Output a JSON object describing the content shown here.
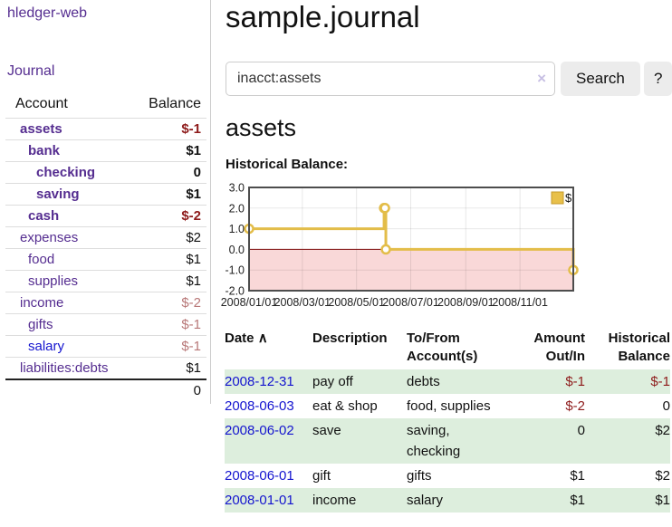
{
  "brand": {
    "label": "hledger-web"
  },
  "nav": {
    "journal": "Journal"
  },
  "sidebar": {
    "columns": {
      "account": "Account",
      "balance": "Balance"
    },
    "accounts": [
      {
        "name": "assets",
        "balance": "$-1",
        "level": 0,
        "in_current_account": true
      },
      {
        "name": "bank",
        "balance": "$1",
        "level": 1,
        "in_current_account": true
      },
      {
        "name": "checking",
        "balance": "0",
        "level": 2,
        "in_current_account": true
      },
      {
        "name": "saving",
        "balance": "$1",
        "level": 2,
        "in_current_account": true
      },
      {
        "name": "cash",
        "balance": "$-2",
        "level": 1,
        "in_current_account": true
      },
      {
        "name": "expenses",
        "balance": "$2",
        "level": 0
      },
      {
        "name": "food",
        "balance": "$1",
        "level": 1
      },
      {
        "name": "supplies",
        "balance": "$1",
        "level": 1
      },
      {
        "name": "income",
        "balance": "$-2",
        "level": 0
      },
      {
        "name": "gifts",
        "balance": "$-1",
        "level": 1
      },
      {
        "name": "salary",
        "balance": "$-1",
        "level": 1,
        "link_state": "unvisited"
      },
      {
        "name": "liabilities:debts",
        "balance": "$1",
        "level": 0
      }
    ],
    "total": "0"
  },
  "header": {
    "title": "sample.journal"
  },
  "search": {
    "value": "inacct:assets",
    "clear_icon": "×",
    "search_button": "Search",
    "help_button": "?"
  },
  "account_view": {
    "heading": "assets",
    "chart_title": "Historical Balance:"
  },
  "chart_data": {
    "type": "line",
    "title": "Historical Balance:",
    "legend": {
      "label": "$",
      "position": "top-right"
    },
    "x_ticks": [
      "2008/01/01",
      "2008/03/01",
      "2008/05/01",
      "2008/07/01",
      "2008/09/01",
      "2008/11/01"
    ],
    "y_ticks": [
      "3.0",
      "2.0",
      "1.0",
      "0.0",
      "-1.0",
      "-2.0"
    ],
    "xlim": [
      "2008/01/01",
      "2008/12/31"
    ],
    "ylim": [
      -2,
      3
    ],
    "grid": true,
    "step": true,
    "negative_region_shaded": true,
    "series": [
      {
        "name": "$",
        "points": [
          {
            "date": "2008/01/01",
            "value": 1
          },
          {
            "date": "2008/06/01",
            "value": 2
          },
          {
            "date": "2008/06/02",
            "value": 2
          },
          {
            "date": "2008/06/03",
            "value": 0
          },
          {
            "date": "2008/12/31",
            "value": -1
          }
        ]
      }
    ],
    "colors": {
      "line": "#e3bd49",
      "marker_fill": "#ffffff",
      "legend_fill": "#e8c04a",
      "legend_border": "#c49a2a",
      "negative_fill": "#f9d8d8",
      "zero_line": "#7c0b0b",
      "plot_border": "#4d4d4d"
    }
  },
  "register": {
    "columns": {
      "date": "Date",
      "description": "Description",
      "accounts": "To/From Account(s)",
      "amount": "Amount Out/In",
      "balance": "Historical Balance"
    },
    "sort": {
      "column": "date",
      "indicator": "∧"
    },
    "rows": [
      {
        "date": "2008-12-31",
        "description": "pay off",
        "accounts": "debts",
        "amount": "$-1",
        "balance": "$-1"
      },
      {
        "date": "2008-06-03",
        "description": "eat & shop",
        "accounts": "food, supplies",
        "amount": "$-2",
        "balance": "0"
      },
      {
        "date": "2008-06-02",
        "description": "save",
        "accounts": "saving, checking",
        "amount": "0",
        "balance": "$2"
      },
      {
        "date": "2008-06-01",
        "description": "gift",
        "accounts": "gifts",
        "amount": "$1",
        "balance": "$2"
      },
      {
        "date": "2008-01-01",
        "description": "income",
        "accounts": "salary",
        "amount": "$1",
        "balance": "$1"
      }
    ]
  }
}
